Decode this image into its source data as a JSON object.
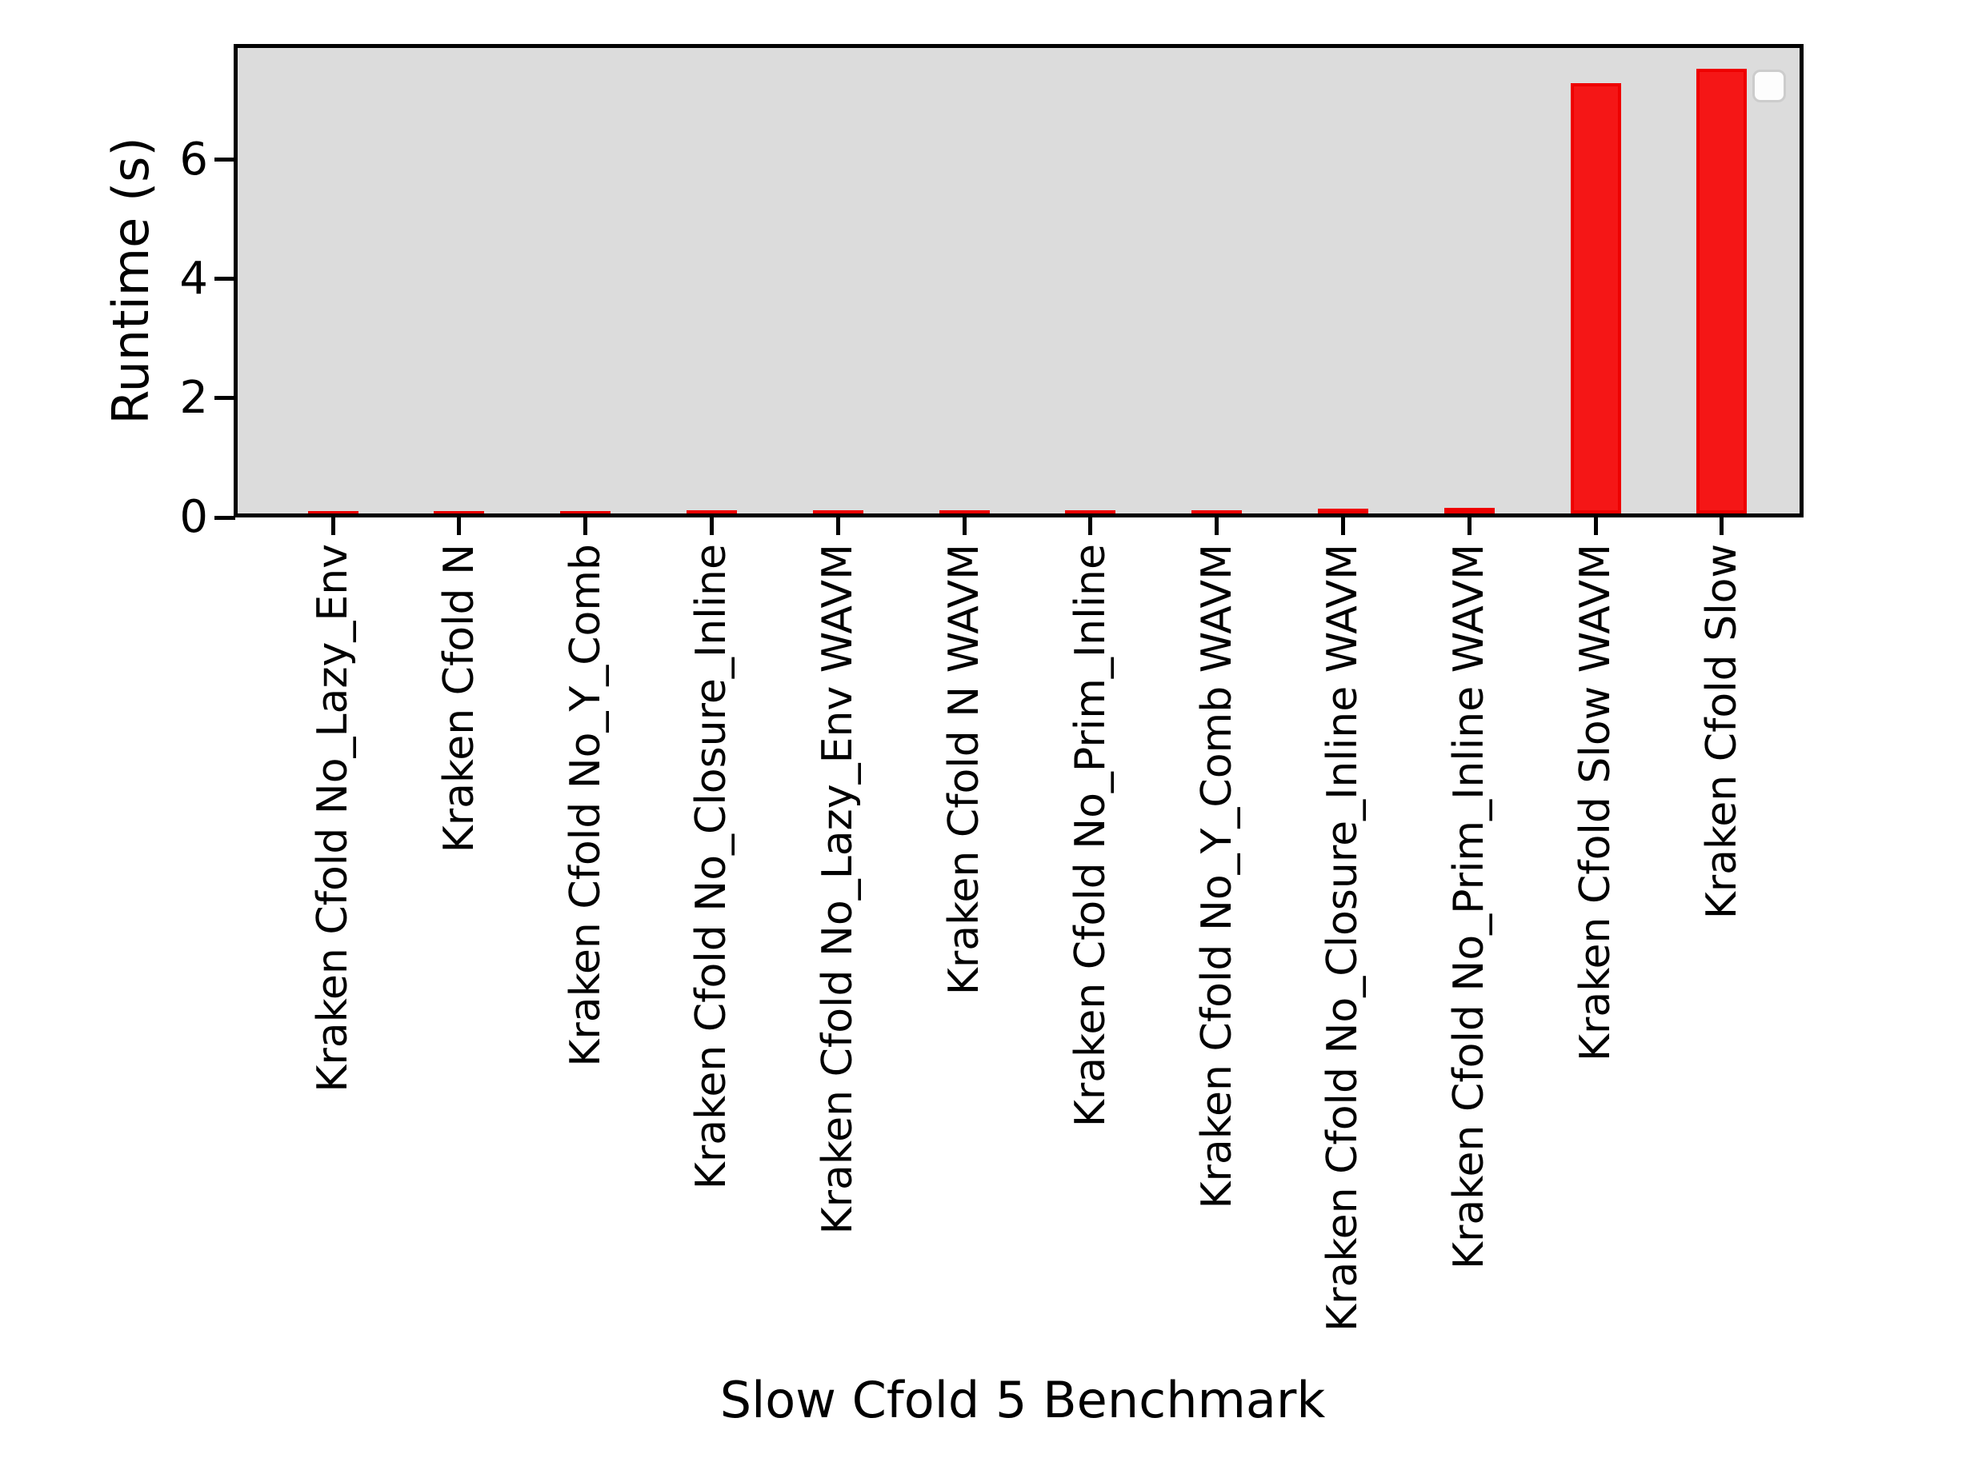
{
  "figure": {
    "background": "#ffffff"
  },
  "chart_data": {
    "type": "bar",
    "title": "",
    "xlabel": "Slow Cfold 5 Benchmark",
    "ylabel": "Runtime (s)",
    "categories": [
      "Kraken Cfold No_Lazy_Env",
      "Kraken Cfold N",
      "Kraken Cfold No_Y_Comb",
      "Kraken Cfold No_Closure_Inline",
      "Kraken Cfold No_Lazy_Env WAVM",
      "Kraken Cfold N WAVM",
      "Kraken Cfold No_Prim_Inline",
      "Kraken Cfold No_Y_Comb WAVM",
      "Kraken Cfold No_Closure_Inline WAVM",
      "Kraken Cfold No_Prim_Inline WAVM",
      "Kraken Cfold Slow WAVM",
      "Kraken Cfold Slow"
    ],
    "values": [
      0.04,
      0.04,
      0.04,
      0.05,
      0.05,
      0.06,
      0.06,
      0.06,
      0.08,
      0.09,
      7.25,
      7.5
    ],
    "ylim": [
      0,
      7.85
    ],
    "yticks": [
      0,
      2,
      4,
      6
    ],
    "x_tick_rotation": 90,
    "grid": false,
    "bar_color": "#f51616",
    "bar_edge_color": "#ee0000",
    "plot_background": "#dcdcdc",
    "legend": {
      "visible": true,
      "entries": [],
      "position": "upper right"
    }
  }
}
